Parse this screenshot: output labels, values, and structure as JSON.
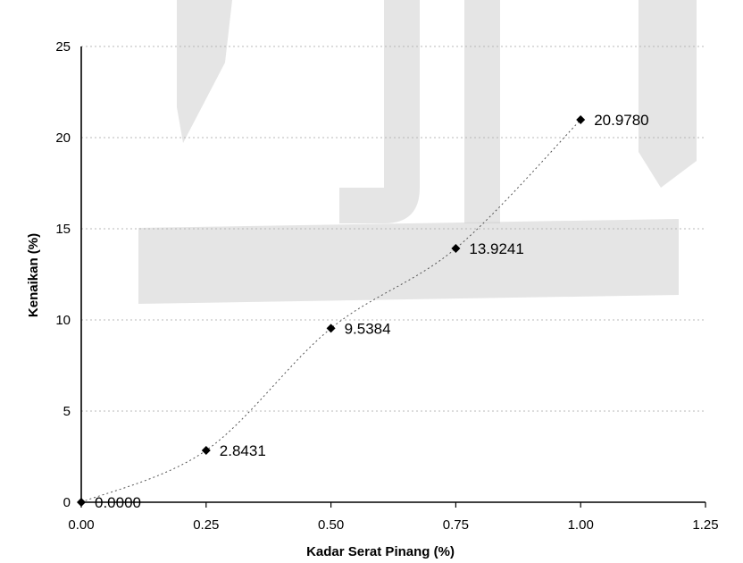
{
  "chart_data": {
    "type": "scatter",
    "title": "",
    "xlabel": "Kadar Serat Pinang (%)",
    "ylabel": "Kenaikan (%)",
    "xlim": [
      0,
      1.25
    ],
    "ylim": [
      0,
      25
    ],
    "x_ticks": [
      "0.00",
      "0.25",
      "0.50",
      "0.75",
      "1.00",
      "1.25"
    ],
    "y_ticks": [
      "0",
      "5",
      "10",
      "15",
      "20",
      "25"
    ],
    "grid": true,
    "trendline": "dotted",
    "marker": "diamond",
    "colors": {
      "marker": "#000000",
      "gridline": "#b8b8b8",
      "trend": "#555555",
      "watermark": "#cfcfcf"
    },
    "series": [
      {
        "x": [
          0.0,
          0.25,
          0.5,
          0.75,
          1.0
        ],
        "y": [
          0.0,
          2.8431,
          9.5384,
          13.9241,
          20.978
        ],
        "labels": [
          "0.0000",
          "2.8431",
          "9.5384",
          "13.9241",
          "20.9780"
        ]
      }
    ]
  }
}
